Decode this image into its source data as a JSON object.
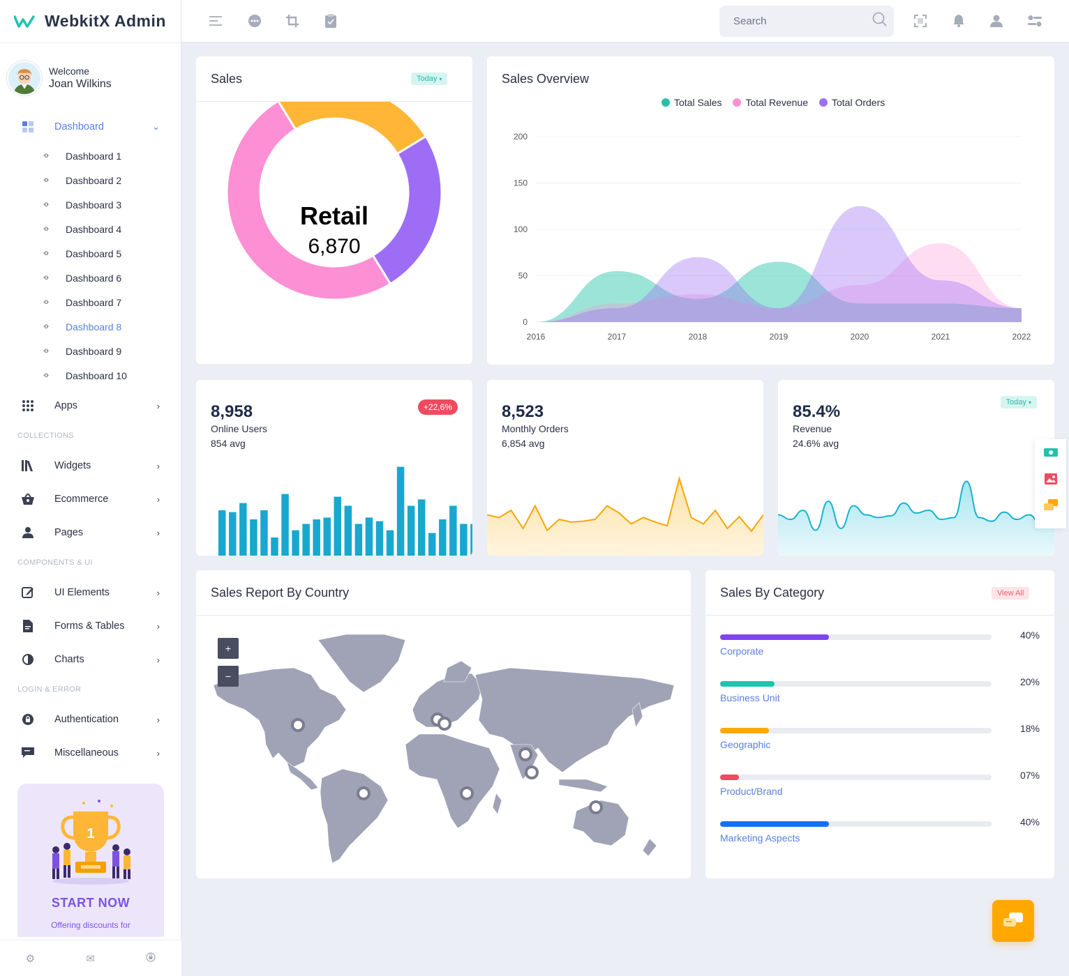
{
  "brand": {
    "name": "WebkitX Admin"
  },
  "profile": {
    "welcome": "Welcome",
    "name": "Joan Wilkins"
  },
  "sidebar": {
    "dashboard_label": "Dashboard",
    "sub_items": [
      "Dashboard 1",
      "Dashboard 2",
      "Dashboard 3",
      "Dashboard 4",
      "Dashboard 5",
      "Dashboard 6",
      "Dashboard 7",
      "Dashboard 8",
      "Dashboard 9",
      "Dashboard 10"
    ],
    "apps_label": "Apps",
    "section_collections": "COLLECTIONS",
    "widgets_label": "Widgets",
    "ecommerce_label": "Ecommerce",
    "pages_label": "Pages",
    "section_components": "COMPONENTS & UI",
    "ui_elements_label": "UI Elements",
    "forms_tables_label": "Forms & Tables",
    "charts_label": "Charts",
    "section_login": "LOGIN & ERROR",
    "authentication_label": "Authentication",
    "misc_label": "Miscellaneous",
    "promo": {
      "title": "START NOW",
      "subtitle": "Offering discounts for"
    }
  },
  "header": {
    "search_placeholder": "Search"
  },
  "sales_card": {
    "title": "Sales",
    "filter": "Today",
    "center_label": "Retail",
    "center_value": "6,870",
    "segments": [
      {
        "color": "#ffb637",
        "value": 25
      },
      {
        "color": "#9d6ef5",
        "value": 25
      },
      {
        "color": "#fd8fd4",
        "value": 50
      }
    ]
  },
  "overview_card": {
    "title": "Sales Overview",
    "chart_data": {
      "type": "area",
      "x": [
        "2016",
        "2017",
        "2018",
        "2019",
        "2020",
        "2021",
        "2022"
      ],
      "ylim": [
        0,
        200
      ],
      "yticks": [
        "0",
        "50",
        "100",
        "150",
        "200"
      ],
      "legend_position": "top-center",
      "series": [
        {
          "name": "Total Sales",
          "color": "#23c4a6",
          "values": [
            0,
            55,
            25,
            65,
            20,
            20,
            15
          ]
        },
        {
          "name": "Total Revenue",
          "color": "#fd8fd4",
          "values": [
            0,
            20,
            30,
            15,
            40,
            85,
            15
          ]
        },
        {
          "name": "Total Orders",
          "color": "#9d6ef5",
          "values": [
            0,
            15,
            70,
            15,
            125,
            45,
            15
          ]
        }
      ]
    }
  },
  "stats": {
    "online_users": {
      "value": "8,958",
      "label": "Online Users",
      "avg": "854 avg",
      "change": "+22,6%",
      "color": "#18a8cf",
      "chart_data": {
        "type": "bar",
        "values": [
          50,
          48,
          58,
          40,
          50,
          20,
          68,
          28,
          35,
          40,
          42,
          65,
          55,
          35,
          42,
          38,
          28,
          98,
          55,
          62,
          25,
          40,
          55,
          35,
          35,
          20
        ]
      }
    },
    "monthly_orders": {
      "value": "8,523",
      "label": "Monthly Orders",
      "avg": "6,854 avg",
      "color": "#f5a60a",
      "chart_data": {
        "type": "area",
        "values": [
          45,
          42,
          50,
          30,
          55,
          28,
          40,
          37,
          38,
          40,
          55,
          47,
          35,
          42,
          37,
          33,
          85,
          42,
          35,
          50,
          30,
          43,
          27,
          45
        ]
      }
    },
    "revenue": {
      "value": "85.4%",
      "label": "Revenue",
      "avg": "24.6% avg",
      "filter": "Today",
      "color": "#18b2cf",
      "chart_data": {
        "type": "area",
        "values": [
          45,
          40,
          50,
          28,
          60,
          30,
          55,
          45,
          42,
          44,
          58,
          47,
          50,
          40,
          42,
          82,
          42,
          38,
          48,
          40,
          45,
          32,
          45
        ]
      }
    }
  },
  "country_card": {
    "title": "Sales Report By Country",
    "zoom_in": "+",
    "zoom_out": "−"
  },
  "category_card": {
    "title": "Sales By Category",
    "action": "View All",
    "categories": [
      {
        "label": "Corporate",
        "percent": "40%",
        "fill": 0.4,
        "color": "#8044f0"
      },
      {
        "label": "Business Unit",
        "percent": "20%",
        "fill": 0.2,
        "color": "#22c3ad"
      },
      {
        "label": "Geographic",
        "percent": "18%",
        "fill": 0.18,
        "color": "#ffa800"
      },
      {
        "label": "Product/Brand",
        "percent": "07%",
        "fill": 0.07,
        "color": "#ef4a5f"
      },
      {
        "label": "Marketing Aspects",
        "percent": "40%",
        "fill": 0.4,
        "color": "#1372f5"
      }
    ]
  }
}
